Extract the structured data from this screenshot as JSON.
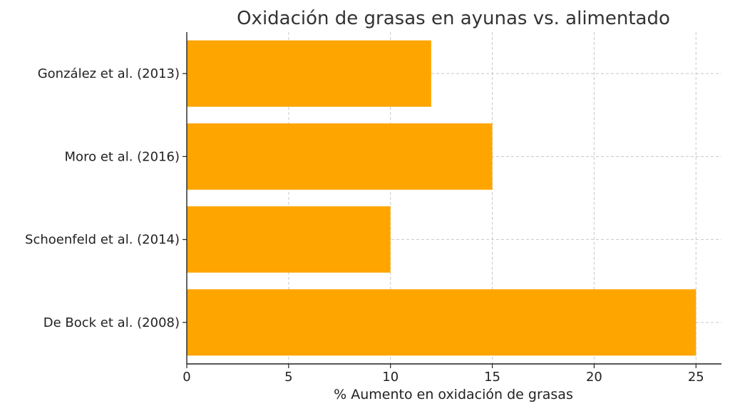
{
  "chart_data": {
    "type": "bar",
    "orientation": "horizontal",
    "title": "Oxidación de grasas en ayunas vs. alimentado",
    "xlabel": "% Aumento en oxidación de grasas",
    "ylabel": "",
    "categories": [
      "González et al. (2013)",
      "Moro et al. (2016)",
      "Schoenfeld et al. (2014)",
      "De Bock et al. (2008)"
    ],
    "values": [
      12,
      15,
      10,
      25
    ],
    "xlim": [
      0,
      26.25
    ],
    "xticks": [
      0,
      5,
      10,
      15,
      20,
      25
    ],
    "xtick_labels": [
      "0",
      "5",
      "10",
      "15",
      "20",
      "25"
    ],
    "grid": true,
    "bar_color": "#FFA500"
  }
}
